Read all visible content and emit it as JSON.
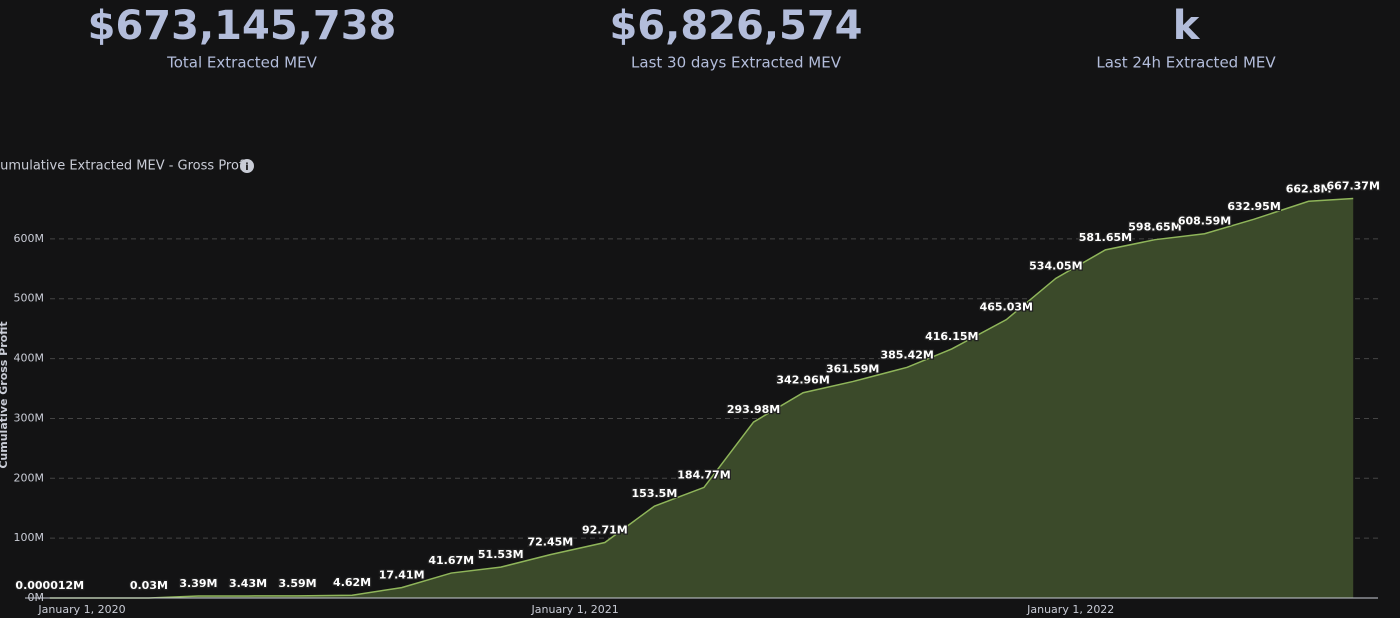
{
  "stats": [
    {
      "value": "$673,145,738",
      "label": "Total Extracted MEV"
    },
    {
      "value": "$6,826,574",
      "label": "Last 30 days Extracted MEV"
    },
    {
      "value": "k",
      "label": "Last 24h Extracted MEV"
    }
  ],
  "chart_data": {
    "type": "area",
    "title": "Cumulative Extracted MEV - Gross Profit",
    "y_label": "Cumulative Gross Profit",
    "color": "#8fb55a",
    "fill": "#3b4a2a",
    "grid": true,
    "xlim": [
      2019.89,
      2022.62
    ],
    "xticks": [
      {
        "value": 2020,
        "label": "January 1, 2020"
      },
      {
        "value": 2021,
        "label": "January 1, 2021"
      },
      {
        "value": 2022,
        "label": "January 1, 2022"
      }
    ],
    "ylim": [
      0,
      680
    ],
    "yticks": [
      {
        "value": 0,
        "label": "0M"
      },
      {
        "value": 100,
        "label": "100M"
      },
      {
        "value": 200,
        "label": "200M"
      },
      {
        "value": 300,
        "label": "300M"
      },
      {
        "value": 400,
        "label": "400M"
      },
      {
        "value": 500,
        "label": "500M"
      },
      {
        "value": 600,
        "label": "600M"
      }
    ],
    "x": [
      2019.94,
      2020.14,
      2020.24,
      2020.34,
      2020.44,
      2020.55,
      2020.65,
      2020.75,
      2020.85,
      2020.95,
      2021.06,
      2021.16,
      2021.26,
      2021.36,
      2021.46,
      2021.56,
      2021.67,
      2021.76,
      2021.87,
      2021.97,
      2022.07,
      2022.17,
      2022.27,
      2022.37,
      2022.48,
      2022.57
    ],
    "values": [
      1.2e-05,
      0.03,
      3.39,
      3.43,
      3.59,
      4.62,
      17.41,
      41.67,
      51.53,
      72.45,
      92.71,
      153.5,
      184.77,
      293.98,
      342.96,
      361.59,
      385.42,
      416.15,
      465.03,
      534.05,
      581.65,
      598.65,
      608.59,
      632.95,
      662.8,
      667.37
    ],
    "value_labels": [
      "0.000012M",
      "0.03M",
      "3.39M",
      "3.43M",
      "3.59M",
      "4.62M",
      "17.41M",
      "41.67M",
      "51.53M",
      "72.45M",
      "92.71M",
      "153.5M",
      "184.77M",
      "293.98M",
      "342.96M",
      "361.59M",
      "385.42M",
      "416.15M",
      "465.03M",
      "534.05M",
      "581.65M",
      "598.65M",
      "608.59M",
      "632.95M",
      "662.8M",
      "667.37M"
    ]
  }
}
